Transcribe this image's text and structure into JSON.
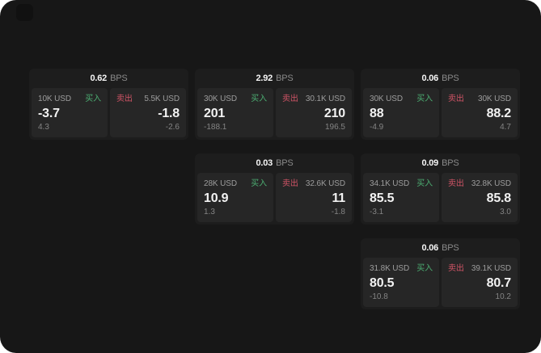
{
  "labels": {
    "buy": "买入",
    "sell": "卖出",
    "bps": "BPS"
  },
  "colors": {
    "buy": "#4cae72",
    "sell": "#d05466",
    "screen_bg": "#171717",
    "card_bg": "#1d1d1d",
    "tile_bg": "#262626"
  },
  "cards": [
    {
      "bps": "0.62",
      "buy": {
        "amount": "10K USD",
        "value": "-3.7",
        "delta": "4.3"
      },
      "sell": {
        "amount": "5.5K USD",
        "value": "-1.8",
        "delta": "-2.6"
      }
    },
    {
      "bps": "2.92",
      "buy": {
        "amount": "30K USD",
        "value": "201",
        "delta": "-188.1"
      },
      "sell": {
        "amount": "30.1K USD",
        "value": "210",
        "delta": "196.5"
      }
    },
    {
      "bps": "0.06",
      "buy": {
        "amount": "30K USD",
        "value": "88",
        "delta": "-4.9"
      },
      "sell": {
        "amount": "30K USD",
        "value": "88.2",
        "delta": "4.7"
      }
    },
    {
      "bps": "0.03",
      "buy": {
        "amount": "28K USD",
        "value": "10.9",
        "delta": "1.3"
      },
      "sell": {
        "amount": "32.6K USD",
        "value": "11",
        "delta": "-1.8"
      }
    },
    {
      "bps": "0.09",
      "buy": {
        "amount": "34.1K USD",
        "value": "85.5",
        "delta": "-3.1"
      },
      "sell": {
        "amount": "32.8K USD",
        "value": "85.8",
        "delta": "3.0"
      }
    },
    {
      "bps": "0.06",
      "buy": {
        "amount": "31.8K USD",
        "value": "80.5",
        "delta": "-10.8"
      },
      "sell": {
        "amount": "39.1K USD",
        "value": "80.7",
        "delta": "10.2"
      }
    }
  ]
}
